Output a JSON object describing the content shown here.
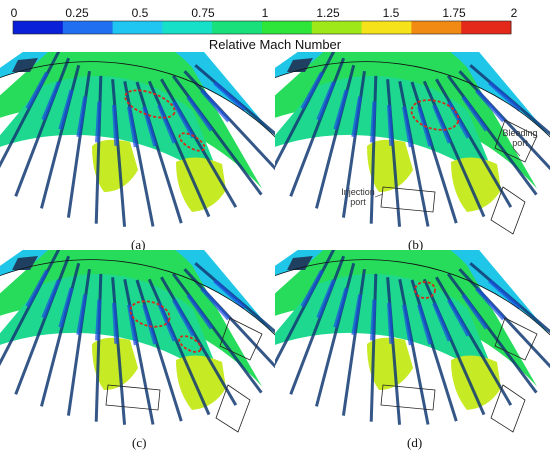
{
  "colorbar": {
    "title": "Relative Mach Number",
    "ticks": [
      "0",
      "0.25",
      "0.5",
      "0.75",
      "1",
      "1.25",
      "1.5",
      "1.75",
      "2"
    ],
    "range": [
      0,
      2
    ],
    "colors": [
      "#0a1fd8",
      "#1f6ff0",
      "#20c6f2",
      "#16e0c8",
      "#19e07a",
      "#2ee63a",
      "#9ee81a",
      "#f5e21a",
      "#f08a12",
      "#e4281a"
    ]
  },
  "panels": [
    {
      "id": "a",
      "label": "(a)"
    },
    {
      "id": "b",
      "label": "(b)",
      "annotations": {
        "bleeding_port": "Bleeding port",
        "injection_port": "Injection port"
      }
    },
    {
      "id": "c",
      "label": "(c)"
    },
    {
      "id": "d",
      "label": "(d)"
    }
  ],
  "highlight_color": "#d42a1a"
}
